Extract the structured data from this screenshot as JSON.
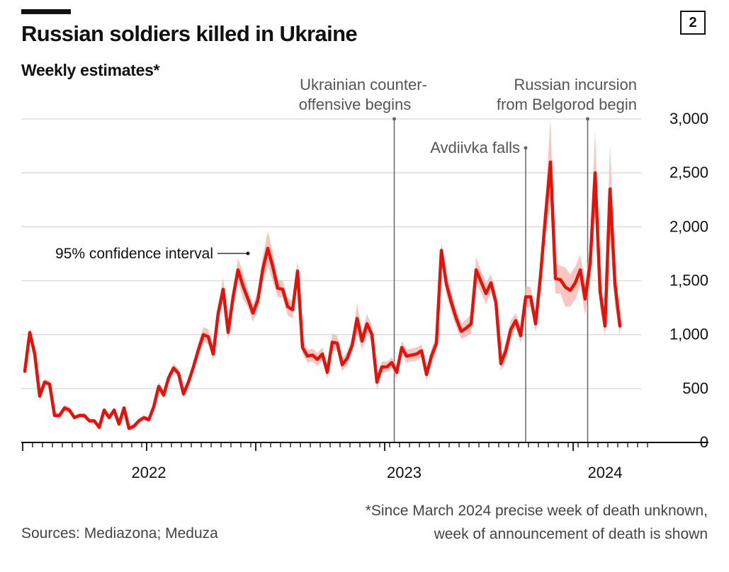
{
  "badge": "2",
  "colors": {
    "line": "#e3120b",
    "band": "#f5b3ab",
    "grid": "#d9d9d9",
    "axis": "#111111",
    "annotation": "#666666"
  },
  "chart_data": {
    "type": "line",
    "title": "Russian soldiers killed in Ukraine",
    "subtitle": "Weekly estimates*",
    "ylim": [
      0,
      3000
    ],
    "yticks": [
      0,
      500,
      1000,
      1500,
      2000,
      2500,
      3000
    ],
    "ytick_labels": [
      "0",
      "500",
      "1,000",
      "1,500",
      "2,000",
      "2,500",
      "3,000"
    ],
    "x_labels": [
      "2022",
      "2023",
      "2024"
    ],
    "x_label_weeks": [
      25,
      76.5,
      117
    ],
    "x_tick_weeks": [
      0,
      2,
      4,
      6,
      8,
      10,
      12,
      14,
      16,
      18,
      20,
      22,
      24,
      26,
      28,
      30,
      32,
      34,
      36,
      38,
      40,
      42,
      44,
      46,
      48,
      50,
      52,
      54,
      56,
      58,
      60,
      62,
      64,
      66,
      68,
      70,
      72,
      74,
      76,
      78,
      80,
      82,
      84,
      86,
      88,
      90,
      92,
      94,
      96,
      98,
      100,
      102,
      104,
      106,
      108,
      110,
      112,
      114,
      116,
      118,
      120,
      122,
      124,
      126
    ],
    "major_tick_weeks": [
      0,
      25,
      47,
      73,
      111
    ],
    "series": [
      {
        "name": "Weekly estimate",
        "values": [
          660,
          1020,
          820,
          430,
          560,
          540,
          250,
          250,
          320,
          300,
          230,
          250,
          250,
          200,
          200,
          140,
          300,
          230,
          300,
          170,
          320,
          130,
          150,
          200,
          230,
          210,
          330,
          520,
          440,
          600,
          690,
          640,
          450,
          560,
          700,
          860,
          1000,
          980,
          820,
          1200,
          1420,
          1020,
          1350,
          1600,
          1450,
          1330,
          1200,
          1320,
          1610,
          1800,
          1630,
          1430,
          1420,
          1260,
          1230,
          1590,
          880,
          800,
          810,
          770,
          820,
          650,
          930,
          920,
          720,
          780,
          900,
          1150,
          940,
          1100,
          1000,
          560,
          700,
          700,
          740,
          650,
          880,
          800,
          810,
          820,
          850,
          630,
          800,
          920,
          1780,
          1470,
          1300,
          1150,
          1030,
          1060,
          1100,
          1600,
          1490,
          1380,
          1480,
          1300,
          730,
          850,
          1050,
          1130,
          990,
          1350,
          1350,
          1100,
          1550,
          2100,
          2600,
          1520,
          1510,
          1440,
          1410,
          1480,
          1600,
          1330,
          1660,
          2500,
          1400,
          1080,
          2350,
          1470,
          1080
        ]
      }
    ],
    "ci_halfwidth": [
      20,
      40,
      20,
      45,
      30,
      30,
      20,
      25,
      30,
      30,
      20,
      20,
      20,
      20,
      20,
      25,
      25,
      20,
      25,
      20,
      20,
      20,
      25,
      20,
      20,
      25,
      35,
      40,
      35,
      40,
      40,
      40,
      40,
      40,
      45,
      60,
      70,
      70,
      60,
      80,
      110,
      70,
      100,
      110,
      120,
      80,
      80,
      80,
      120,
      160,
      140,
      80,
      80,
      80,
      80,
      100,
      60,
      60,
      60,
      60,
      60,
      60,
      80,
      70,
      60,
      60,
      60,
      140,
      80,
      90,
      80,
      70,
      50,
      50,
      50,
      60,
      60,
      60,
      60,
      60,
      60,
      60,
      70,
      70,
      80,
      100,
      90,
      80,
      70,
      80,
      90,
      120,
      100,
      100,
      80,
      80,
      70,
      80,
      80,
      70,
      70,
      100,
      90,
      80,
      120,
      160,
      400,
      140,
      130,
      180,
      150,
      150,
      140,
      150,
      160,
      390,
      150,
      100,
      420,
      200,
      90
    ],
    "annotations": [
      {
        "label_lines": [
          "Ukrainian counter-",
          "offensive begins"
        ],
        "week": 74.5
      },
      {
        "label_lines": [
          "Avdiivka falls"
        ],
        "week": 101
      },
      {
        "label_lines": [
          "Russian incursion",
          "from Belgorod begin"
        ],
        "week": 113.5
      },
      {
        "label_lines": [
          "95% confidence interval"
        ],
        "week": 46
      }
    ]
  },
  "footer": {
    "source": "Sources: Mediazona; Meduza",
    "note_line1": "*Since March 2024 precise week of death unknown,",
    "note_line2": "week of announcement of death is shown"
  }
}
